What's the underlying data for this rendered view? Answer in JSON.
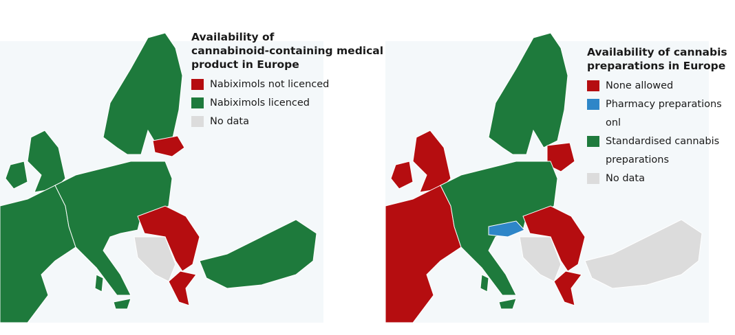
{
  "maps": [
    {
      "title_lines": [
        "Availability of",
        "cannabinoid-containing medical",
        "product in Europe"
      ],
      "legend": [
        {
          "lines": [
            "Nabiximols not licenced"
          ],
          "color": "#b50d10"
        },
        {
          "lines": [
            "Nabiximols licenced"
          ],
          "color": "#1e7a3c"
        },
        {
          "lines": [
            "No data"
          ],
          "color": "#dcdcdc"
        }
      ]
    },
    {
      "title_lines": [
        "Availability of cannabis",
        "preparations in Europe"
      ],
      "legend": [
        {
          "lines": [
            "None allowed"
          ],
          "color": "#b50d10"
        },
        {
          "lines": [
            "Pharmacy preparations onl"
          ],
          "color": "#2e86c8"
        },
        {
          "lines": [
            "Standardised cannabis",
            "preparations"
          ],
          "color": "#1e7a3c"
        },
        {
          "lines": [
            "No data"
          ],
          "color": "#dcdcdc"
        }
      ]
    }
  ]
}
